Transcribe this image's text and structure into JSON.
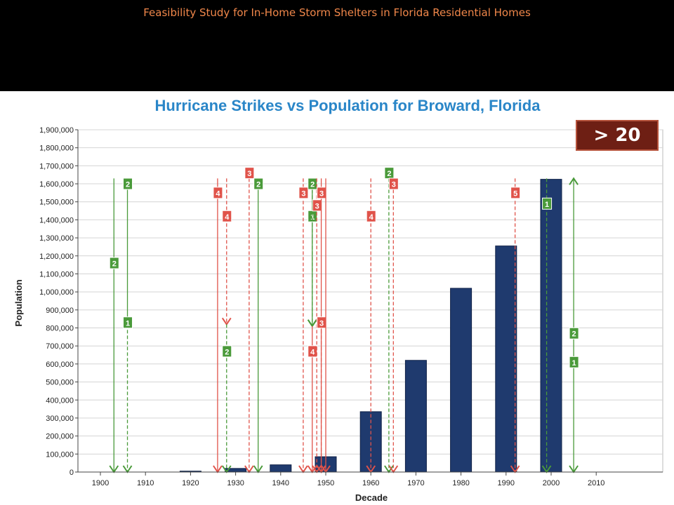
{
  "slide_title": "Feasibility Study for In-Home Storm Shelters in Florida Residential Homes",
  "badge_text": "> 20",
  "colors": {
    "title": "#f0874a",
    "chart_title": "#2a86c8",
    "bar": "#1f3a6e",
    "strike_green": "#4a9a3a",
    "strike_red": "#e0534a",
    "badge_bg": "#6e1f14"
  },
  "chart_data": {
    "type": "bar",
    "title": "Hurricane Strikes vs Population for Broward, Florida",
    "xlabel": "Decade",
    "ylabel": "Population",
    "categories": [
      "1900",
      "1910",
      "1920",
      "1930",
      "1940",
      "1950",
      "1960",
      "1970",
      "1980",
      "1990",
      "2000",
      "2010"
    ],
    "values": [
      0,
      0,
      5000,
      20000,
      40000,
      85000,
      335000,
      620000,
      1020000,
      1255000,
      1625000,
      0
    ],
    "ylim": [
      0,
      1900000
    ],
    "y_tick_step": 100000,
    "grid": true,
    "strikes": [
      {
        "year": 1903,
        "category": "2",
        "color": "green",
        "style": "solid",
        "arrow": "down",
        "from": 1630000,
        "to": 0,
        "label_y": 1160000
      },
      {
        "year": 1906,
        "category": "2",
        "color": "green",
        "style": "solid",
        "arrow": "down",
        "from": 1630000,
        "to": 820000,
        "label_y": 1600000
      },
      {
        "year": 1906,
        "category": "1",
        "color": "green",
        "style": "dashed",
        "arrow": "down",
        "from": 820000,
        "to": 0,
        "label_y": 830000
      },
      {
        "year": 1926,
        "category": "4",
        "color": "red",
        "style": "solid",
        "arrow": "down",
        "from": 1630000,
        "to": 0,
        "label_y": 1550000
      },
      {
        "year": 1928,
        "category": "4",
        "color": "red",
        "style": "dashed",
        "arrow": "down",
        "from": 1630000,
        "to": 820000,
        "label_y": 1420000
      },
      {
        "year": 1928,
        "category": "2",
        "color": "green",
        "style": "dashed",
        "arrow": "down",
        "from": 820000,
        "to": 0,
        "label_y": 670000
      },
      {
        "year": 1933,
        "category": "3",
        "color": "red",
        "style": "dashed",
        "arrow": "down",
        "from": 1630000,
        "to": 0,
        "label_y": 1660000
      },
      {
        "year": 1935,
        "category": "2",
        "color": "green",
        "style": "solid",
        "arrow": "down",
        "from": 1630000,
        "to": 0,
        "label_y": 1600000
      },
      {
        "year": 1945,
        "category": "3",
        "color": "red",
        "style": "dashed",
        "arrow": "down",
        "from": 1630000,
        "to": 0,
        "label_y": 1550000
      },
      {
        "year": 1947,
        "category": "1",
        "color": "green",
        "style": "solid",
        "arrow": "down",
        "from": 1630000,
        "to": 810000,
        "label_y": 1420000
      },
      {
        "year": 1947,
        "category": "2",
        "color": "green",
        "style": "dashed",
        "arrow": "down",
        "from": 1630000,
        "to": 810000,
        "label_y": 1600000
      },
      {
        "year": 1947,
        "category": "4",
        "color": "red",
        "style": "solid",
        "arrow": "down",
        "from": 810000,
        "to": 0,
        "label_y": 670000
      },
      {
        "year": 1948,
        "category": "3",
        "color": "red",
        "style": "dashed",
        "arrow": "down",
        "from": 1630000,
        "to": 0,
        "label_y": 1480000
      },
      {
        "year": 1949,
        "category": "3",
        "color": "red",
        "style": "solid",
        "arrow": "down",
        "from": 1630000,
        "to": 0,
        "label_y": 1550000
      },
      {
        "year": 1949,
        "category": "3",
        "color": "red",
        "style": "dashed",
        "arrow": "down",
        "from": 820000,
        "to": 0,
        "label_y": 830000
      },
      {
        "year": 1950,
        "category": "4",
        "color": "red",
        "style": "solid",
        "arrow": "down",
        "from": 1630000,
        "to": 0,
        "label_y": null
      },
      {
        "year": 1960,
        "category": "4",
        "color": "red",
        "style": "dashed",
        "arrow": "down",
        "from": 1630000,
        "to": 0,
        "label_y": 1420000
      },
      {
        "year": 1964,
        "category": "2",
        "color": "green",
        "style": "dashed",
        "arrow": "down",
        "from": 1630000,
        "to": 0,
        "label_y": 1660000
      },
      {
        "year": 1965,
        "category": "3",
        "color": "red",
        "style": "dashed",
        "arrow": "down",
        "from": 1630000,
        "to": 0,
        "label_y": 1600000
      },
      {
        "year": 1992,
        "category": "5",
        "color": "red",
        "style": "dashed",
        "arrow": "down",
        "from": 1630000,
        "to": 0,
        "label_y": 1550000
      },
      {
        "year": 1999,
        "category": "1",
        "color": "green",
        "style": "dashed",
        "arrow": "down",
        "from": 1630000,
        "to": 0,
        "label_y": 1490000
      },
      {
        "year": 2005,
        "category": "2",
        "color": "green",
        "style": "solid",
        "arrow": "both",
        "from": 1630000,
        "to": 0,
        "label_y": 770000
      },
      {
        "year": 2005,
        "category": "1",
        "color": "green",
        "style": "solid",
        "arrow": "none",
        "from": 0,
        "to": 0,
        "label_y": 610000
      }
    ]
  }
}
